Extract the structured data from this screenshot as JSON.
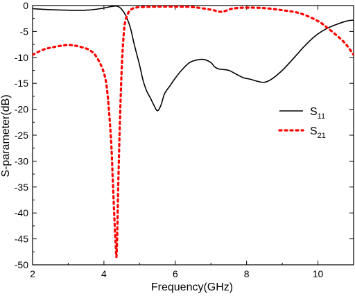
{
  "chart_data": {
    "type": "line",
    "title": "",
    "xlabel": "Frequency(GHz)",
    "ylabel": "S-parameter(dB)",
    "xlim": [
      2,
      11
    ],
    "ylim": [
      -50,
      0
    ],
    "xticks": [
      2,
      4,
      6,
      8,
      10
    ],
    "xtick_labels": [
      "2",
      "4",
      "6",
      "8",
      "10"
    ],
    "yticks": [
      0,
      -5,
      -10,
      -15,
      -20,
      -25,
      -30,
      -35,
      -40,
      -45,
      -50
    ],
    "ytick_labels": [
      "0",
      "-5",
      "-10",
      "-15",
      "-20",
      "-25",
      "-30",
      "-35",
      "-40",
      "-45",
      "-50"
    ],
    "grid": false,
    "legend_position": "right",
    "series": [
      {
        "name": "S11",
        "name_main": "S",
        "name_sub": "11",
        "color": "#000000",
        "style": "solid",
        "x": [
          2.0,
          2.5,
          3.0,
          3.5,
          3.9,
          4.2,
          4.35,
          4.45,
          4.55,
          4.65,
          4.75,
          4.85,
          5.0,
          5.1,
          5.2,
          5.3,
          5.4,
          5.5,
          5.6,
          5.7,
          5.85,
          6.0,
          6.2,
          6.4,
          6.6,
          6.8,
          7.0,
          7.1,
          7.2,
          7.3,
          7.5,
          7.7,
          7.9,
          8.1,
          8.3,
          8.5,
          8.7,
          9.0,
          9.3,
          9.6,
          9.9,
          10.2,
          10.5,
          10.8,
          11.0
        ],
        "y": [
          -0.6,
          -0.8,
          -0.9,
          -0.9,
          -0.6,
          -0.2,
          -0.1,
          -0.4,
          -1.2,
          -2.5,
          -4.5,
          -7.5,
          -11.5,
          -14.5,
          -16.5,
          -17.8,
          -19.2,
          -20.3,
          -19.2,
          -17.0,
          -15.5,
          -14.0,
          -12.3,
          -11.0,
          -10.5,
          -10.4,
          -11.0,
          -11.8,
          -12.2,
          -12.3,
          -12.5,
          -13.2,
          -13.9,
          -14.2,
          -14.6,
          -14.8,
          -14.2,
          -12.5,
          -10.3,
          -8.0,
          -6.0,
          -4.6,
          -3.7,
          -3.0,
          -2.8
        ]
      },
      {
        "name": "S21",
        "name_main": "S",
        "name_sub": "21",
        "color": "#ff0000",
        "style": "dotted",
        "x": [
          2.0,
          2.3,
          2.6,
          3.0,
          3.3,
          3.6,
          3.8,
          4.0,
          4.1,
          4.2,
          4.25,
          4.3,
          4.33,
          4.35,
          4.37,
          4.4,
          4.45,
          4.5,
          4.55,
          4.6,
          4.7,
          4.8,
          4.9,
          5.0,
          5.5,
          6.0,
          6.5,
          7.0,
          7.3,
          7.6,
          8.0,
          8.5,
          9.0,
          9.5,
          10.0,
          10.3,
          10.6,
          10.8,
          11.0
        ],
        "y": [
          -9.5,
          -8.5,
          -8.0,
          -7.6,
          -7.9,
          -8.6,
          -10.0,
          -13.0,
          -17.0,
          -26.0,
          -34.0,
          -42.0,
          -46.0,
          -48.5,
          -45.0,
          -35.0,
          -22.0,
          -12.0,
          -6.0,
          -3.0,
          -1.2,
          -0.6,
          -0.4,
          -0.3,
          -0.2,
          -0.2,
          -0.3,
          -0.8,
          -1.2,
          -0.6,
          -0.4,
          -0.5,
          -0.9,
          -1.5,
          -3.0,
          -4.5,
          -6.2,
          -7.6,
          -9.5
        ]
      }
    ]
  }
}
